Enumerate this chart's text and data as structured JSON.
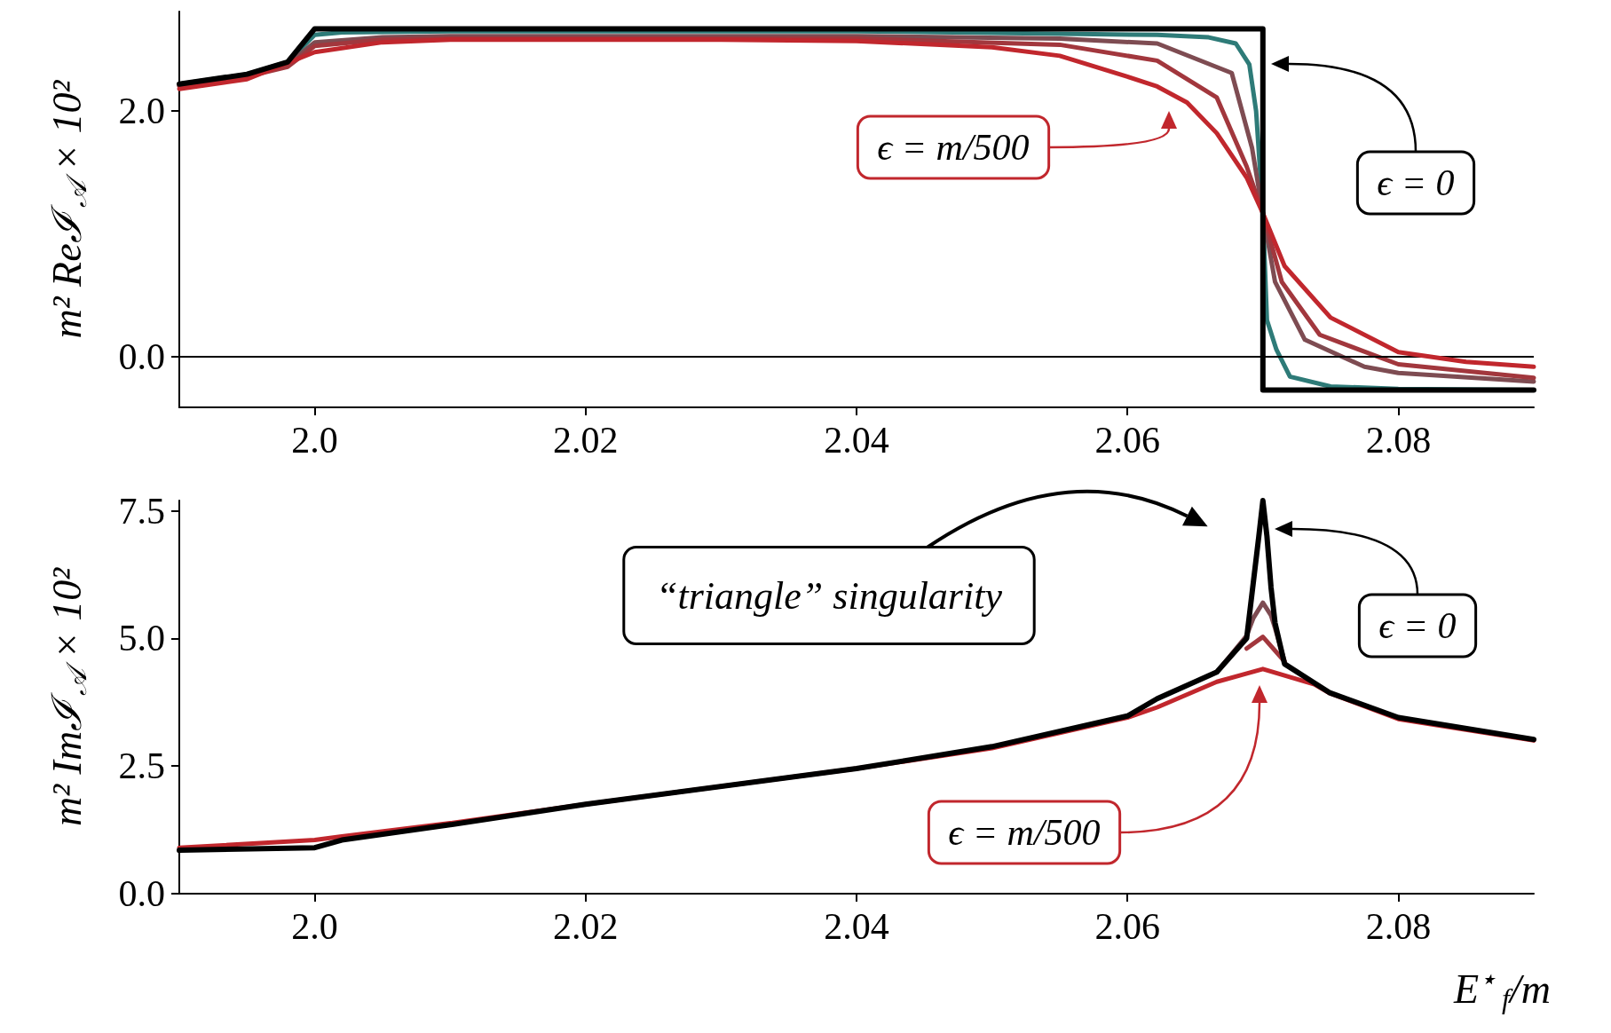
{
  "chart_data": [
    {
      "type": "line",
      "ylabel": "m² Reℐ$_{𝒜}$ × 10²",
      "xlim": [
        1.99,
        2.09
      ],
      "xticks": [
        {
          "value": 2.0,
          "label": "2.0"
        },
        2.02,
        2.04,
        2.06,
        2.08
      ],
      "ylim": [
        -0.41,
        2.81
      ],
      "yticks": [
        {
          "value": 0,
          "label": "0.0"
        },
        {
          "value": 2,
          "label": "2.0"
        }
      ],
      "grid": false,
      "marker": "none",
      "line_style": "solid",
      "ref_lines": [
        {
          "axis": "y",
          "value": 0,
          "color": "#000000"
        }
      ],
      "annotations": [
        "ϵ = m/500",
        "ϵ = 0"
      ],
      "series": [
        {
          "color": "#2e7b78",
          "x": [
            1.99,
            1.995,
            1.998,
            2.0,
            2.002,
            2.01,
            2.04,
            2.0622,
            2.066,
            2.068,
            2.069,
            2.0695,
            2.07,
            2.0703,
            2.071,
            2.072,
            2.075,
            2.08,
            2.09
          ],
          "values": [
            2.22,
            2.3,
            2.4,
            2.62,
            2.64,
            2.65,
            2.65,
            2.62,
            2.6,
            2.55,
            2.38,
            2.0,
            1.17,
            0.3,
            0.06,
            -0.16,
            -0.24,
            -0.26,
            -0.27
          ]
        },
        {
          "color": "#7e4c52",
          "x": [
            1.99,
            1.995,
            1.998,
            2.0,
            2.005,
            2.01,
            2.04,
            2.055,
            2.0622,
            2.0677,
            2.0692,
            2.07,
            2.0709,
            2.0731,
            2.0775,
            2.08,
            2.09
          ],
          "values": [
            2.21,
            2.29,
            2.38,
            2.56,
            2.6,
            2.61,
            2.61,
            2.59,
            2.55,
            2.31,
            1.7,
            1.17,
            0.61,
            0.14,
            -0.08,
            -0.13,
            -0.2
          ]
        },
        {
          "color": "#a2373d",
          "x": [
            1.99,
            1.995,
            1.998,
            2.0,
            2.005,
            2.01,
            2.04,
            2.055,
            2.0622,
            2.0666,
            2.0688,
            2.07,
            2.0714,
            2.0742,
            2.08,
            2.09
          ],
          "values": [
            2.2,
            2.28,
            2.36,
            2.53,
            2.58,
            2.59,
            2.59,
            2.54,
            2.41,
            2.11,
            1.55,
            1.17,
            0.61,
            0.18,
            -0.06,
            -0.17
          ]
        },
        {
          "color": "#c1272d",
          "x": [
            1.99,
            1.995,
            2.0,
            2.005,
            2.01,
            2.03,
            2.04,
            2.05,
            2.055,
            2.06,
            2.0622,
            2.0644,
            2.0666,
            2.0688,
            2.07,
            2.0716,
            2.075,
            2.08,
            2.085,
            2.09
          ],
          "values": [
            2.18,
            2.26,
            2.48,
            2.56,
            2.58,
            2.58,
            2.57,
            2.52,
            2.45,
            2.28,
            2.2,
            2.07,
            1.82,
            1.46,
            1.17,
            0.74,
            0.32,
            0.04,
            -0.04,
            -0.08
          ]
        },
        {
          "color": "#000000",
          "x": [
            1.99,
            1.995,
            1.998,
            2.0,
            2.07,
            2.07,
            2.09
          ],
          "values": [
            2.22,
            2.3,
            2.4,
            2.67,
            2.67,
            -0.27,
            -0.27
          ]
        }
      ]
    },
    {
      "type": "line",
      "ylabel": "m² Imℐ$_{𝒜}$ × 10²",
      "xlabel": "E$^{⋆}$$_{f}$/m",
      "xlim": [
        1.99,
        2.09
      ],
      "xticks": [
        {
          "value": 2.0,
          "label": "2.0"
        },
        2.02,
        2.04,
        2.06,
        2.08
      ],
      "ylim": [
        0,
        7.7
      ],
      "yticks": [
        {
          "value": 0,
          "label": "0.0"
        },
        {
          "value": 2.5,
          "label": "2.5"
        },
        {
          "value": 5,
          "label": "5.0"
        },
        {
          "value": 7.5,
          "label": "7.5"
        }
      ],
      "grid": false,
      "marker": "none",
      "line_style": "solid",
      "annotations": [
        "“triangle” singularity",
        "ϵ = 0",
        "ϵ = m/500"
      ],
      "series": [
        {
          "color": "#7e4c52",
          "x": [
            2.0666,
            2.0688,
            2.0693,
            2.07,
            2.0706,
            2.0709,
            2.0716
          ],
          "values": [
            4.34,
            5.05,
            5.4,
            5.7,
            5.45,
            5.2,
            4.55
          ]
        },
        {
          "color": "#a2373d",
          "x": [
            2.0688,
            2.07,
            2.0716
          ],
          "values": [
            4.8,
            5.03,
            4.55
          ]
        },
        {
          "color": "#c1272d",
          "x": [
            1.99,
            2.0,
            2.002,
            2.01,
            2.02,
            2.04,
            2.05,
            2.06,
            2.0622,
            2.0666,
            2.07,
            2.0738,
            2.0749,
            2.08,
            2.09
          ],
          "values": [
            0.9,
            1.05,
            1.12,
            1.38,
            1.75,
            2.45,
            2.85,
            3.45,
            3.65,
            4.15,
            4.4,
            4.1,
            3.93,
            3.42,
            3.0
          ]
        },
        {
          "color": "#000000",
          "x": [
            1.99,
            2.0,
            2.002,
            2.01,
            2.02,
            2.04,
            2.05,
            2.06,
            2.0622,
            2.0666,
            2.0688,
            2.0697,
            2.07,
            2.0703,
            2.0706,
            2.0709,
            2.0716,
            2.0749,
            2.08,
            2.09
          ],
          "values": [
            0.85,
            0.9,
            1.05,
            1.35,
            1.75,
            2.45,
            2.88,
            3.48,
            3.82,
            4.34,
            5.0,
            7.0,
            7.7,
            7.0,
            6.0,
            5.3,
            4.5,
            3.94,
            3.45,
            3.02
          ]
        }
      ]
    }
  ]
}
